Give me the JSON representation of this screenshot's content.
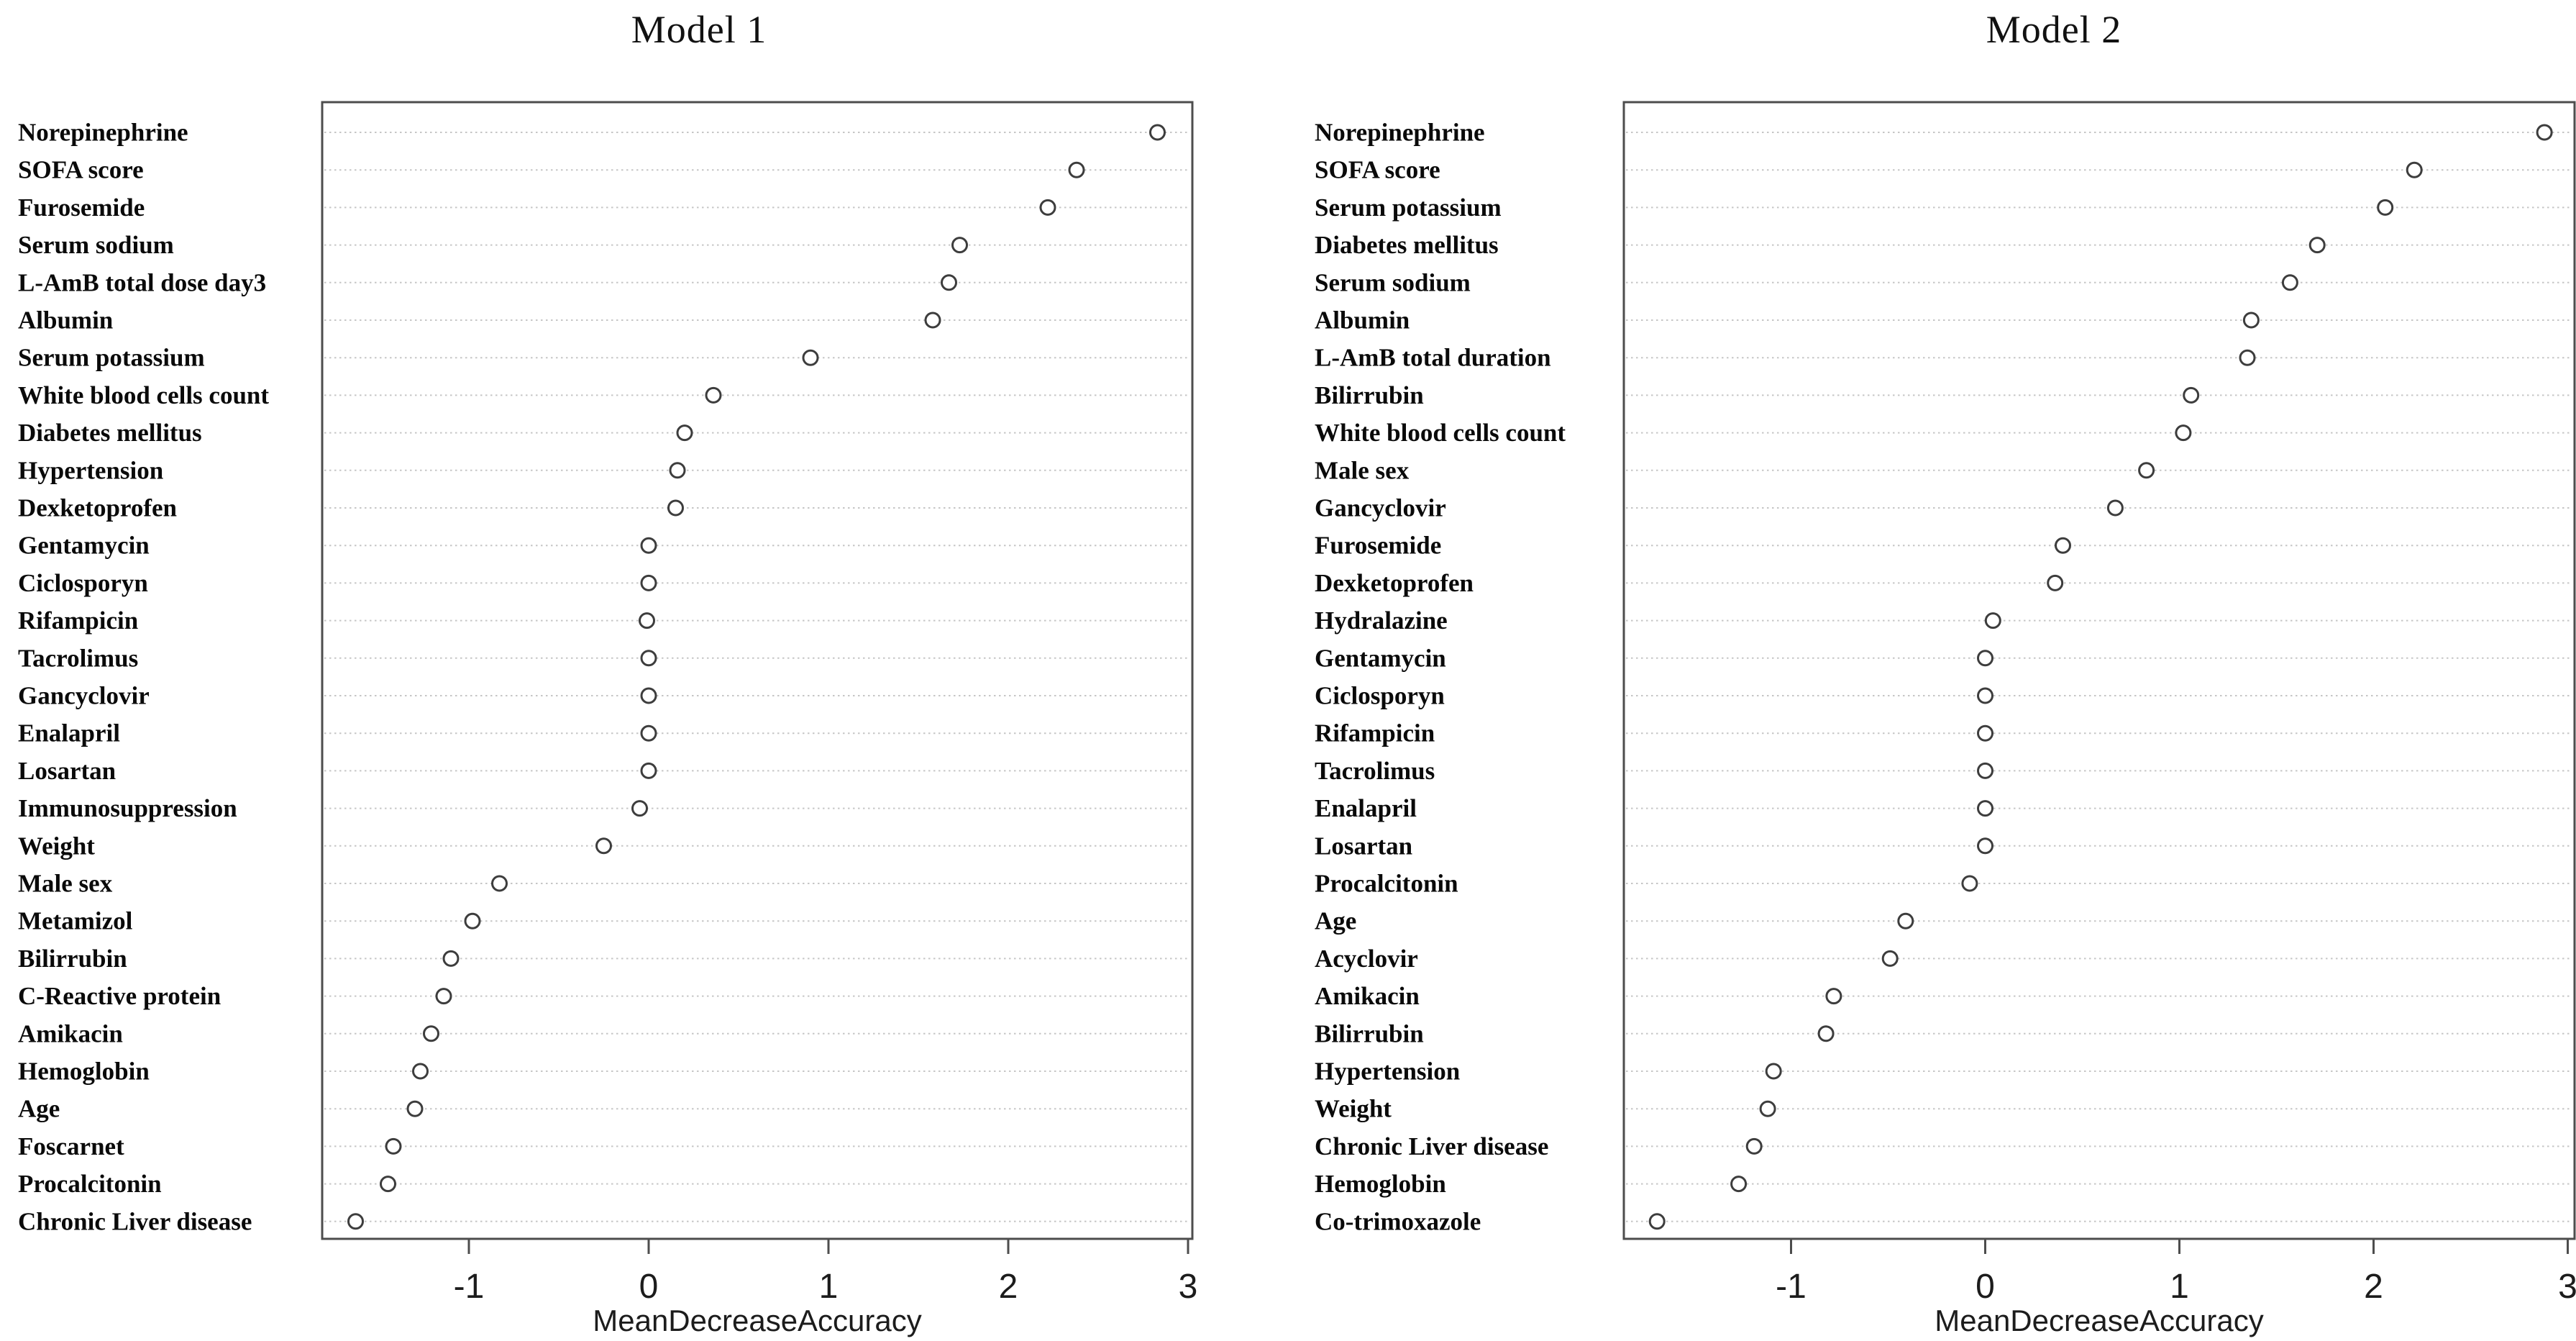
{
  "figure_type": "random-forest variable importance dot plots",
  "colors": {
    "background": "#ffffff",
    "frame": "#4d4d4d",
    "gridline": "#c6c6c6",
    "point_stroke": "#3d3d3d",
    "point_fill": "#ffffff",
    "tick": "#4d4d4d",
    "text": "#111111"
  },
  "chart_data": [
    {
      "type": "scatter",
      "title": "Model 1",
      "xlabel": "MeanDecreaseAccuracy",
      "x_ticks": [
        -1,
        0,
        1,
        2,
        3
      ],
      "xlim": [
        -1.82,
        3.02
      ],
      "grid": "dotted horizontal per category",
      "legend": "none",
      "marker": "open-circle",
      "categories": [
        "Norepinephrine",
        "SOFA score",
        "Furosemide",
        "Serum sodium",
        "L-AmB total dose day3",
        "Albumin",
        "Serum potassium",
        "White blood cells count",
        "Diabetes mellitus",
        "Hypertension",
        "Dexketoprofen",
        "Gentamycin",
        "Ciclosporyn",
        "Rifampicin",
        "Tacrolimus",
        "Gancyclovir",
        "Enalapril",
        "Losartan",
        "Immunosuppression",
        "Weight",
        "Male sex",
        "Metamizol",
        "Bilirrubin",
        "C-Reactive protein",
        "Amikacin",
        "Hemoglobin",
        "Age",
        "Foscarnet",
        "Procalcitonin",
        "Chronic Liver disease"
      ],
      "values": [
        2.83,
        2.38,
        2.22,
        1.73,
        1.67,
        1.58,
        0.9,
        0.36,
        0.2,
        0.16,
        0.15,
        0.0,
        0.0,
        -0.01,
        0.0,
        0.0,
        0.0,
        0.0,
        -0.05,
        -0.25,
        -0.83,
        -0.98,
        -1.1,
        -1.14,
        -1.21,
        -1.27,
        -1.3,
        -1.42,
        -1.45,
        -1.63
      ]
    },
    {
      "type": "scatter",
      "title": "Model 2",
      "xlabel": "MeanDecreaseAccuracy",
      "x_ticks": [
        -1,
        0,
        1,
        2,
        3
      ],
      "xlim": [
        -1.86,
        3.03
      ],
      "grid": "dotted horizontal per category",
      "legend": "none",
      "marker": "open-circle",
      "categories": [
        "Norepinephrine",
        "SOFA score",
        "Serum potassium",
        "Diabetes mellitus",
        "Serum sodium",
        "Albumin",
        "L-AmB total duration",
        "Bilirrubin",
        "White blood cells count",
        "Male sex",
        "Gancyclovir",
        "Furosemide",
        "Dexketoprofen",
        "Hydralazine",
        "Gentamycin",
        "Ciclosporyn",
        "Rifampicin",
        "Tacrolimus",
        "Enalapril",
        "Losartan",
        "Procalcitonin",
        "Age",
        "Acyclovir",
        "Amikacin",
        "Bilirrubin",
        "Hypertension",
        "Weight",
        "Chronic Liver disease",
        "Hemoglobin",
        "Co-trimoxazole"
      ],
      "values": [
        2.88,
        2.21,
        2.06,
        1.71,
        1.57,
        1.37,
        1.35,
        1.06,
        1.02,
        0.83,
        0.67,
        0.4,
        0.36,
        0.04,
        0.0,
        0.0,
        0.0,
        0.0,
        0.0,
        0.0,
        -0.08,
        -0.41,
        -0.49,
        -0.78,
        -0.82,
        -1.09,
        -1.12,
        -1.19,
        -1.27,
        -1.69
      ]
    }
  ]
}
